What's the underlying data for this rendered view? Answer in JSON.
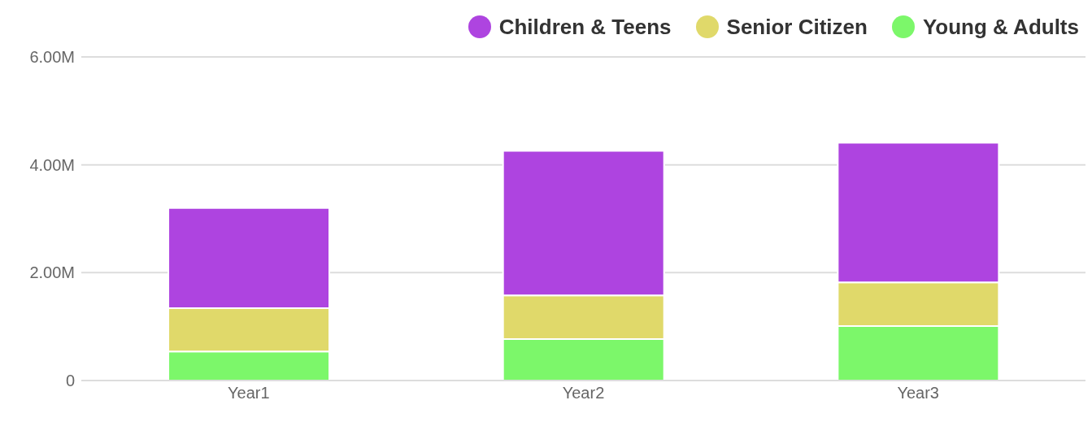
{
  "chart_data": {
    "type": "bar",
    "stacked": true,
    "categories": [
      "Year1",
      "Year2",
      "Year3"
    ],
    "series": [
      {
        "name": "Young & Adults",
        "color": "#7cf76a",
        "values": [
          0.54,
          0.77,
          1.01
        ]
      },
      {
        "name": "Senior Citizen",
        "color": "#e0d96a",
        "values": [
          0.8,
          0.81,
          0.81
        ]
      },
      {
        "name": "Children & Teens",
        "color": "#ae44e0",
        "values": [
          1.86,
          2.68,
          2.59
        ]
      }
    ],
    "ylim": [
      0,
      6
    ],
    "yticks": [
      {
        "value": 0,
        "label": "0"
      },
      {
        "value": 2,
        "label": "2.00M"
      },
      {
        "value": 4,
        "label": "4.00M"
      },
      {
        "value": 6,
        "label": "6.00M"
      }
    ],
    "grid": "y",
    "legend": "top right"
  }
}
